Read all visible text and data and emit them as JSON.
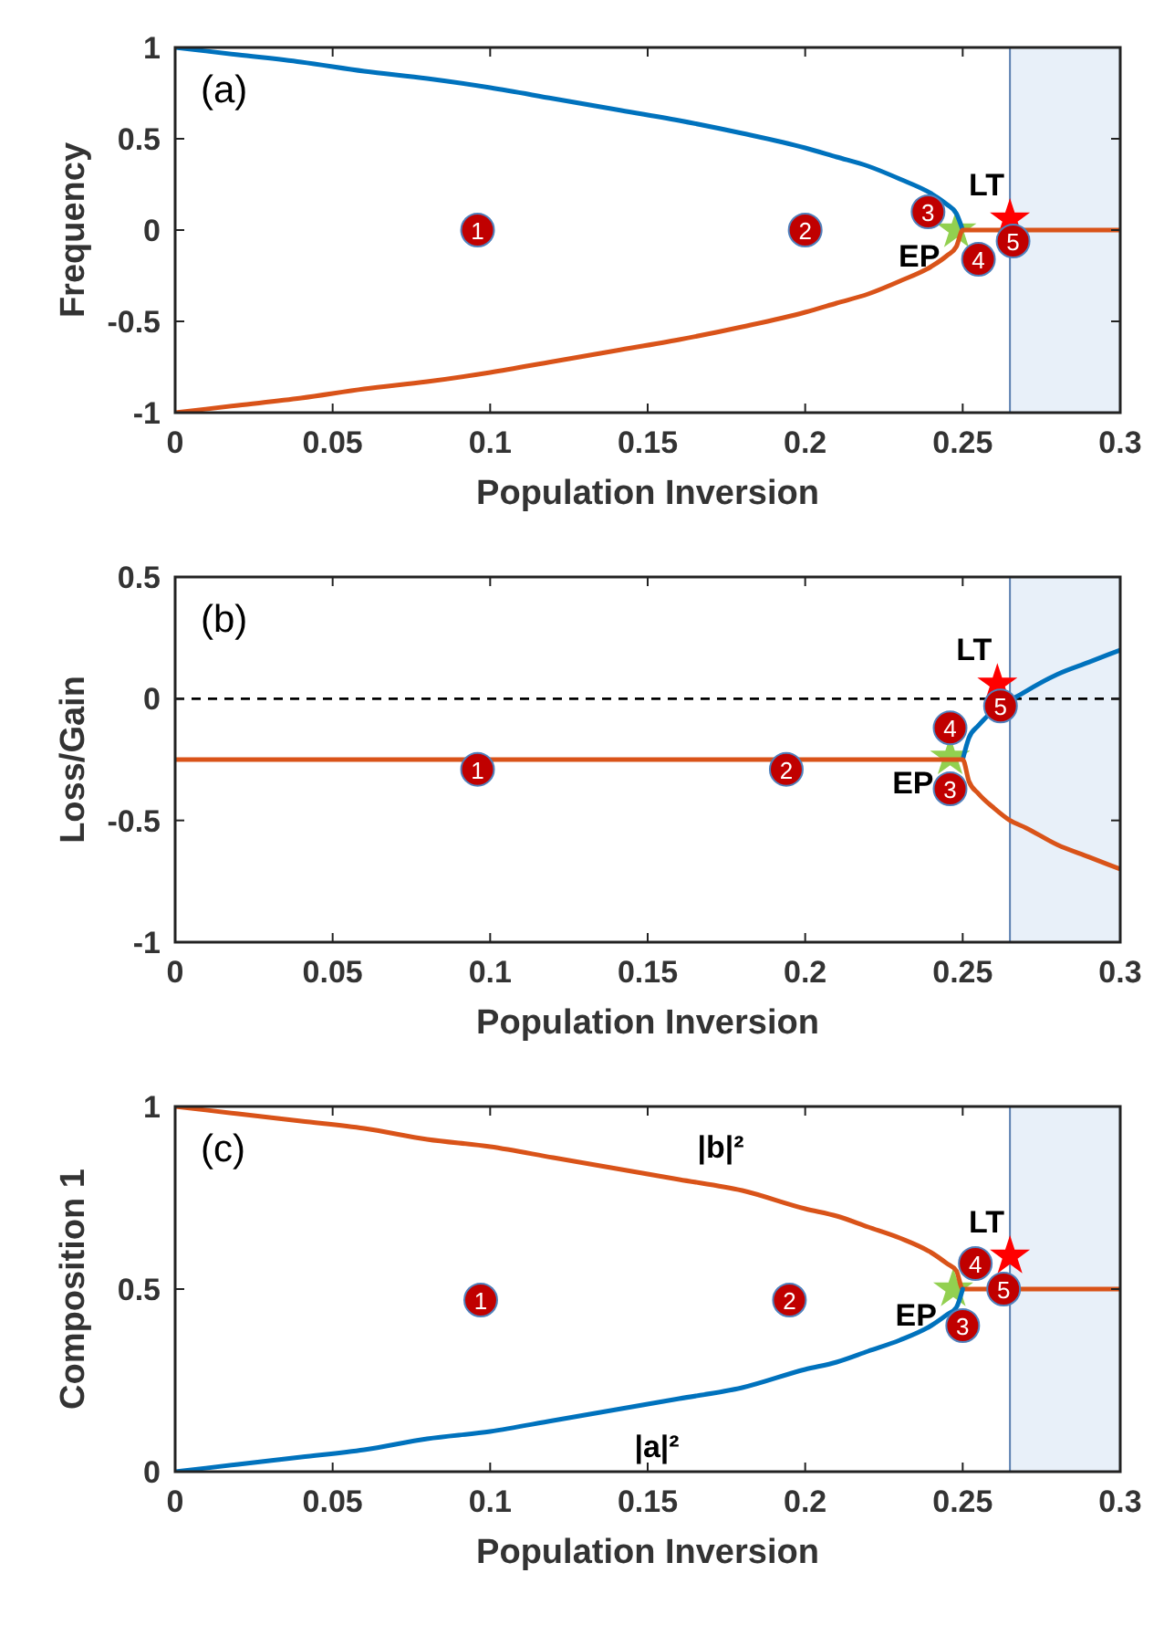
{
  "chart_data": [
    {
      "type": "line",
      "xlabel": "Population Inversion",
      "ylabel": "Frequency",
      "xlim": [
        0,
        0.3
      ],
      "xticks": [
        0,
        0.05,
        0.1,
        0.15,
        0.2,
        0.25,
        0.3
      ],
      "ylim": [
        -1,
        1
      ],
      "yticks": [
        -1,
        -0.5,
        0,
        0.5,
        1
      ],
      "grid": false,
      "annotations": [
        "(a)",
        {
          "text": "1",
          "x": 0.096,
          "y": 0
        },
        {
          "text": "2",
          "x": 0.2,
          "y": 0
        },
        {
          "text": "3",
          "x": 0.239,
          "y": 0.1
        },
        {
          "text": "4",
          "x": 0.255,
          "y": -0.16
        },
        {
          "text": "5",
          "x": 0.266,
          "y": -0.06
        }
      ],
      "bands": [
        {
          "axis": "x",
          "from": 0.265,
          "to": 0.3,
          "color": "#e8f0f9"
        }
      ],
      "series": [
        {
          "color": "#0072bd",
          "x": [
            0,
            0.02,
            0.04,
            0.06,
            0.08,
            0.1,
            0.12,
            0.14,
            0.16,
            0.18,
            0.2,
            0.21,
            0.22,
            0.23,
            0.24,
            0.245,
            0.248,
            0.25
          ],
          "values": [
            1,
            0.96,
            0.92,
            0.87,
            0.83,
            0.78,
            0.72,
            0.66,
            0.6,
            0.53,
            0.45,
            0.4,
            0.35,
            0.28,
            0.2,
            0.14,
            0.09,
            0
          ]
        },
        {
          "color": "#d95319",
          "x": [
            0,
            0.02,
            0.04,
            0.06,
            0.08,
            0.1,
            0.12,
            0.14,
            0.16,
            0.18,
            0.2,
            0.21,
            0.22,
            0.23,
            0.24,
            0.245,
            0.248,
            0.25,
            0.3
          ],
          "values": [
            -1,
            -0.96,
            -0.92,
            -0.87,
            -0.83,
            -0.78,
            -0.72,
            -0.66,
            -0.6,
            -0.53,
            -0.45,
            -0.4,
            -0.35,
            -0.28,
            -0.2,
            -0.14,
            -0.09,
            0,
            0
          ]
        },
        {
          "type": "scatter",
          "marker": "star",
          "name": "EP",
          "color": "#92d050",
          "x": [
            0.248
          ],
          "values": [
            0
          ]
        },
        {
          "type": "scatter",
          "marker": "star",
          "name": "LT",
          "color": "#ff0000",
          "x": [
            0.265
          ],
          "values": [
            0.06
          ]
        }
      ]
    },
    {
      "type": "line",
      "xlabel": "Population Inversion",
      "ylabel": "Loss/Gain",
      "xlim": [
        0,
        0.3
      ],
      "xticks": [
        0,
        0.05,
        0.1,
        0.15,
        0.2,
        0.25,
        0.3
      ],
      "ylim": [
        -1,
        0.5
      ],
      "yticks": [
        -1,
        -0.5,
        0,
        0.5
      ],
      "grid": false,
      "annotations": [
        "(b)",
        {
          "text": "1",
          "x": 0.096,
          "y": -0.29
        },
        {
          "text": "2",
          "x": 0.194,
          "y": -0.29
        },
        {
          "text": "3",
          "x": 0.246,
          "y": -0.37
        },
        {
          "text": "4",
          "x": 0.246,
          "y": -0.12
        },
        {
          "text": "5",
          "x": 0.262,
          "y": -0.03
        }
      ],
      "bands": [
        {
          "axis": "x",
          "from": 0.265,
          "to": 0.3,
          "color": "#e8f0f9"
        }
      ],
      "ref_lines": [
        {
          "axis": "y",
          "value": 0,
          "color": "#000000",
          "line_style": "dashed"
        }
      ],
      "series": [
        {
          "color": "#0072bd",
          "x": [
            0.25,
            0.252,
            0.255,
            0.26,
            0.265,
            0.27,
            0.28,
            0.29,
            0.3
          ],
          "values": [
            -0.25,
            -0.16,
            -0.11,
            null,
            null,
            0.03,
            0.1,
            0.15,
            0.2
          ]
        },
        {
          "color": "#d95319",
          "x": [
            0,
            0.25,
            0.252,
            0.255,
            0.26,
            0.265,
            0.27,
            0.28,
            0.29,
            0.3
          ],
          "values": [
            -0.25,
            -0.25,
            -0.34,
            -0.39,
            -0.45,
            -0.5,
            -0.53,
            -0.6,
            -0.65,
            -0.7
          ]
        },
        {
          "type": "scatter",
          "marker": "star",
          "name": "EP",
          "color": "#92d050",
          "x": [
            0.246
          ],
          "values": [
            -0.24
          ]
        },
        {
          "type": "scatter",
          "marker": "star",
          "name": "LT",
          "color": "#ff0000",
          "x": [
            0.261
          ],
          "values": [
            0.06
          ]
        }
      ]
    },
    {
      "type": "line",
      "xlabel": "Population Inversion",
      "ylabel": "Composition 1",
      "xlim": [
        0,
        0.3
      ],
      "xticks": [
        0,
        0.05,
        0.1,
        0.15,
        0.2,
        0.25,
        0.3
      ],
      "ylim": [
        0,
        1
      ],
      "yticks": [
        0,
        0.5,
        1
      ],
      "grid": false,
      "annotations": [
        "(c)",
        {
          "text": "1",
          "x": 0.097,
          "y": 0.47
        },
        {
          "text": "2",
          "x": 0.195,
          "y": 0.47
        },
        {
          "text": "3",
          "x": 0.25,
          "y": 0.4
        },
        {
          "text": "4",
          "x": 0.254,
          "y": 0.57
        },
        {
          "text": "5",
          "x": 0.263,
          "y": 0.5
        }
      ],
      "bands": [
        {
          "axis": "x",
          "from": 0.265,
          "to": 0.3,
          "color": "#e8f0f9"
        }
      ],
      "series": [
        {
          "name": "|b|²",
          "color": "#d95319",
          "x": [
            0,
            0.02,
            0.04,
            0.06,
            0.08,
            0.1,
            0.12,
            0.14,
            0.16,
            0.18,
            0.2,
            0.21,
            0.22,
            0.23,
            0.24,
            0.245,
            0.248,
            0.25,
            0.3
          ],
          "values": [
            1,
            0.98,
            0.96,
            0.94,
            0.91,
            0.89,
            0.86,
            0.83,
            0.8,
            0.77,
            0.72,
            0.7,
            0.67,
            0.64,
            0.6,
            0.57,
            0.55,
            0.5,
            0.5
          ]
        },
        {
          "name": "|a|²",
          "color": "#0072bd",
          "x": [
            0,
            0.02,
            0.04,
            0.06,
            0.08,
            0.1,
            0.12,
            0.14,
            0.16,
            0.18,
            0.2,
            0.21,
            0.22,
            0.23,
            0.24,
            0.245,
            0.248,
            0.25
          ],
          "values": [
            0,
            0.02,
            0.04,
            0.06,
            0.09,
            0.11,
            0.14,
            0.17,
            0.2,
            0.23,
            0.28,
            0.3,
            0.33,
            0.36,
            0.4,
            0.43,
            0.45,
            0.5
          ]
        },
        {
          "type": "scatter",
          "marker": "star",
          "name": "EP",
          "color": "#92d050",
          "x": [
            0.247
          ],
          "values": [
            0.5
          ]
        },
        {
          "type": "scatter",
          "marker": "star",
          "name": "LT",
          "color": "#ff0000",
          "x": [
            0.265
          ],
          "values": [
            0.59
          ]
        }
      ]
    }
  ]
}
